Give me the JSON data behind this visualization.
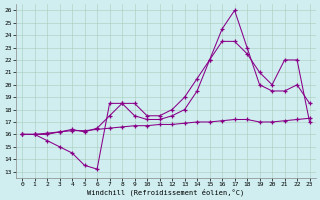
{
  "xlabel": "Windchill (Refroidissement éolien,°C)",
  "bg_color": "#d0eef0",
  "line_color": "#880088",
  "xlim": [
    -0.5,
    23.5
  ],
  "ylim": [
    12.5,
    26.5
  ],
  "yticks": [
    13,
    14,
    15,
    16,
    17,
    18,
    19,
    20,
    21,
    22,
    23,
    24,
    25,
    26
  ],
  "xticks": [
    0,
    1,
    2,
    3,
    4,
    5,
    6,
    7,
    8,
    9,
    10,
    11,
    12,
    13,
    14,
    15,
    16,
    17,
    18,
    19,
    20,
    21,
    22,
    23
  ],
  "line1_x": [
    0,
    1,
    2,
    3,
    4,
    5,
    6,
    7,
    8,
    9,
    10,
    11,
    12,
    13,
    14,
    15,
    16,
    17,
    18,
    19,
    20,
    21,
    22,
    23
  ],
  "line1_y": [
    16.0,
    16.0,
    15.5,
    15.0,
    14.5,
    13.5,
    13.2,
    18.5,
    18.5,
    17.5,
    17.2,
    17.2,
    17.5,
    18.0,
    19.5,
    22.0,
    24.5,
    26.0,
    23.0,
    20.0,
    19.5,
    19.5,
    20.0,
    18.5
  ],
  "line2_x": [
    0,
    1,
    2,
    3,
    4,
    5,
    6,
    7,
    8,
    9,
    10,
    11,
    12,
    13,
    14,
    15,
    16,
    17,
    18,
    19,
    20,
    21,
    22,
    23
  ],
  "line2_y": [
    16.0,
    16.0,
    16.0,
    16.2,
    16.4,
    16.2,
    16.5,
    17.5,
    18.5,
    18.5,
    17.5,
    17.5,
    18.0,
    19.0,
    20.5,
    22.0,
    23.5,
    23.5,
    22.5,
    21.0,
    20.0,
    22.0,
    22.0,
    17.0
  ],
  "line3_x": [
    0,
    1,
    2,
    3,
    4,
    5,
    6,
    7,
    8,
    9,
    10,
    11,
    12,
    13,
    14,
    15,
    16,
    17,
    18,
    19,
    20,
    21,
    22,
    23
  ],
  "line3_y": [
    16.0,
    16.0,
    16.1,
    16.2,
    16.3,
    16.3,
    16.4,
    16.5,
    16.6,
    16.7,
    16.7,
    16.8,
    16.8,
    16.9,
    17.0,
    17.0,
    17.1,
    17.2,
    17.2,
    17.0,
    17.0,
    17.1,
    17.2,
    17.3
  ]
}
